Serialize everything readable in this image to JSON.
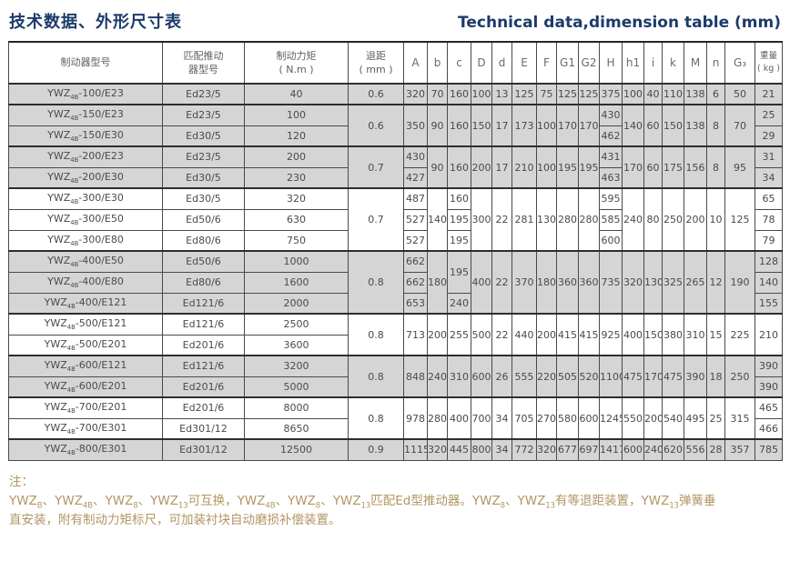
{
  "title": {
    "zh": "技术数据、外形尺寸表",
    "en": "Technical data,dimension table (mm)"
  },
  "table": {
    "headers": {
      "model": "制动器型号",
      "thruster": "匹配推动\n器型号",
      "torque": "制动力矩\n( N.m )",
      "gap": "退距\n( mm )",
      "dims": [
        "A",
        "b",
        "c",
        "D",
        "d",
        "E",
        "F",
        "G1",
        "G2",
        "H",
        "h1",
        "i",
        "k",
        "M",
        "n",
        "G₃"
      ],
      "weight": "重量\n( kg )"
    },
    "groups": [
      {
        "shade": true,
        "gap": "0.6",
        "rows": [
          {
            "model": "YWZ{4B}-100/E23",
            "thruster": "Ed23/5",
            "torque": "40"
          }
        ],
        "cells": {
          "A": [
            [
              "320",
              1
            ]
          ],
          "b": [
            [
              "70",
              1
            ]
          ],
          "c": [
            [
              "160",
              1
            ]
          ],
          "D": [
            [
              "100",
              1
            ]
          ],
          "d": [
            [
              "13",
              1
            ]
          ],
          "E": [
            [
              "125",
              1
            ]
          ],
          "F": [
            [
              "75",
              1
            ]
          ],
          "G1": [
            [
              "125",
              1
            ]
          ],
          "G2": [
            [
              "125",
              1
            ]
          ],
          "H": [
            [
              "375",
              1
            ]
          ],
          "h1": [
            [
              "100",
              1
            ]
          ],
          "i": [
            [
              "40",
              1
            ]
          ],
          "k": [
            [
              "110",
              1
            ]
          ],
          "M": [
            [
              "138",
              1
            ]
          ],
          "n": [
            [
              "6",
              1
            ]
          ],
          "G3": [
            [
              "50",
              1
            ]
          ],
          "wt": [
            [
              "21",
              1
            ]
          ]
        }
      },
      {
        "shade": true,
        "gap": "0.6",
        "rows": [
          {
            "model": "YWZ{4B}-150/E23",
            "thruster": "Ed23/5",
            "torque": "100"
          },
          {
            "model": "YWZ{4B}-150/E30",
            "thruster": "Ed30/5",
            "torque": "120"
          }
        ],
        "cells": {
          "A": [
            [
              "350",
              2
            ]
          ],
          "b": [
            [
              "90",
              2
            ]
          ],
          "c": [
            [
              "160",
              2
            ]
          ],
          "D": [
            [
              "150",
              2
            ]
          ],
          "d": [
            [
              "17",
              2
            ]
          ],
          "E": [
            [
              "173",
              2
            ]
          ],
          "F": [
            [
              "100",
              2
            ]
          ],
          "G1": [
            [
              "170",
              2
            ]
          ],
          "G2": [
            [
              "170",
              2
            ]
          ],
          "H": [
            [
              "430",
              1
            ],
            [
              "462",
              1
            ]
          ],
          "h1": [
            [
              "140",
              2
            ]
          ],
          "i": [
            [
              "60",
              2
            ]
          ],
          "k": [
            [
              "150",
              2
            ]
          ],
          "M": [
            [
              "138",
              2
            ]
          ],
          "n": [
            [
              "8",
              2
            ]
          ],
          "G3": [
            [
              "70",
              2
            ]
          ],
          "wt": [
            [
              "25",
              1
            ],
            [
              "29",
              1
            ]
          ]
        }
      },
      {
        "shade": true,
        "gap": "0.7",
        "rows": [
          {
            "model": "YWZ{4B}-200/E23",
            "thruster": "Ed23/5",
            "torque": "200"
          },
          {
            "model": "YWZ{4B}-200/E30",
            "thruster": "Ed30/5",
            "torque": "230"
          }
        ],
        "cells": {
          "A": [
            [
              "430",
              1
            ],
            [
              "427",
              1
            ]
          ],
          "b": [
            [
              "90",
              2
            ]
          ],
          "c": [
            [
              "160",
              2
            ]
          ],
          "D": [
            [
              "200",
              2
            ]
          ],
          "d": [
            [
              "17",
              2
            ]
          ],
          "E": [
            [
              "210",
              2
            ]
          ],
          "F": [
            [
              "100",
              2
            ]
          ],
          "G1": [
            [
              "195",
              2
            ]
          ],
          "G2": [
            [
              "195",
              2
            ]
          ],
          "H": [
            [
              "431",
              1
            ],
            [
              "463",
              1
            ]
          ],
          "h1": [
            [
              "170",
              2
            ]
          ],
          "i": [
            [
              "60",
              2
            ]
          ],
          "k": [
            [
              "175",
              2
            ]
          ],
          "M": [
            [
              "156",
              2
            ]
          ],
          "n": [
            [
              "8",
              2
            ]
          ],
          "G3": [
            [
              "95",
              2
            ]
          ],
          "wt": [
            [
              "31",
              1
            ],
            [
              "34",
              1
            ]
          ]
        }
      },
      {
        "shade": false,
        "gap": "0.7",
        "rows": [
          {
            "model": "YWZ{4B}-300/E30",
            "thruster": "Ed30/5",
            "torque": "320"
          },
          {
            "model": "YWZ{4B}-300/E50",
            "thruster": "Ed50/6",
            "torque": "630"
          },
          {
            "model": "YWZ{4B}-300/E80",
            "thruster": "Ed80/6",
            "torque": "750"
          }
        ],
        "cells": {
          "A": [
            [
              "487",
              1
            ],
            [
              "527",
              1
            ],
            [
              "527",
              1
            ]
          ],
          "b": [
            [
              "140",
              3
            ]
          ],
          "c": [
            [
              "160",
              1
            ],
            [
              "195",
              1
            ],
            [
              "195",
              1
            ]
          ],
          "D": [
            [
              "300",
              3
            ]
          ],
          "d": [
            [
              "22",
              3
            ]
          ],
          "E": [
            [
              "281",
              3
            ]
          ],
          "F": [
            [
              "130",
              3
            ]
          ],
          "G1": [
            [
              "280",
              3
            ]
          ],
          "G2": [
            [
              "280",
              3
            ]
          ],
          "H": [
            [
              "595",
              1
            ],
            [
              "585",
              1
            ],
            [
              "600",
              1
            ]
          ],
          "h1": [
            [
              "240",
              3
            ]
          ],
          "i": [
            [
              "80",
              3
            ]
          ],
          "k": [
            [
              "250",
              3
            ]
          ],
          "M": [
            [
              "200",
              3
            ]
          ],
          "n": [
            [
              "10",
              3
            ]
          ],
          "G3": [
            [
              "125",
              3
            ]
          ],
          "wt": [
            [
              "65",
              1
            ],
            [
              "78",
              1
            ],
            [
              "79",
              1
            ]
          ]
        }
      },
      {
        "shade": true,
        "gap": "0.8",
        "rows": [
          {
            "model": "YWZ{4B}-400/E50",
            "thruster": "Ed50/6",
            "torque": "1000"
          },
          {
            "model": "YWZ{4B}-400/E80",
            "thruster": "Ed80/6",
            "torque": "1600"
          },
          {
            "model": "YWZ{4B}-400/E121",
            "thruster": "Ed121/6",
            "torque": "2000"
          }
        ],
        "cells": {
          "A": [
            [
              "662",
              1
            ],
            [
              "662",
              1
            ],
            [
              "653",
              1
            ]
          ],
          "b": [
            [
              "180",
              3
            ]
          ],
          "c": [
            [
              "195",
              2
            ],
            [
              "240",
              1
            ]
          ],
          "D": [
            [
              "400",
              3
            ]
          ],
          "d": [
            [
              "22",
              3
            ]
          ],
          "E": [
            [
              "370",
              3
            ]
          ],
          "F": [
            [
              "180",
              3
            ]
          ],
          "G1": [
            [
              "360",
              3
            ]
          ],
          "G2": [
            [
              "360",
              3
            ]
          ],
          "H": [
            [
              "735",
              3
            ]
          ],
          "h1": [
            [
              "320",
              3
            ]
          ],
          "i": [
            [
              "130",
              3
            ]
          ],
          "k": [
            [
              "325",
              3
            ]
          ],
          "M": [
            [
              "265",
              3
            ]
          ],
          "n": [
            [
              "12",
              3
            ]
          ],
          "G3": [
            [
              "190",
              3
            ]
          ],
          "wt": [
            [
              "128",
              1
            ],
            [
              "140",
              1
            ],
            [
              "155",
              1
            ]
          ]
        }
      },
      {
        "shade": false,
        "gap": "0.8",
        "rows": [
          {
            "model": "YWZ{4B}-500/E121",
            "thruster": "Ed121/6",
            "torque": "2500"
          },
          {
            "model": "YWZ{4B}-500/E201",
            "thruster": "Ed201/6",
            "torque": "3600"
          }
        ],
        "cells": {
          "A": [
            [
              "713",
              2
            ]
          ],
          "b": [
            [
              "200",
              2
            ]
          ],
          "c": [
            [
              "255",
              2
            ]
          ],
          "D": [
            [
              "500",
              2
            ]
          ],
          "d": [
            [
              "22",
              2
            ]
          ],
          "E": [
            [
              "440",
              2
            ]
          ],
          "F": [
            [
              "200",
              2
            ]
          ],
          "G1": [
            [
              "415",
              2
            ]
          ],
          "G2": [
            [
              "415",
              2
            ]
          ],
          "H": [
            [
              "925",
              2
            ]
          ],
          "h1": [
            [
              "400",
              2
            ]
          ],
          "i": [
            [
              "150",
              2
            ]
          ],
          "k": [
            [
              "380",
              2
            ]
          ],
          "M": [
            [
              "310",
              2
            ]
          ],
          "n": [
            [
              "15",
              2
            ]
          ],
          "G3": [
            [
              "225",
              2
            ]
          ],
          "wt": [
            [
              "210",
              2
            ]
          ]
        }
      },
      {
        "shade": true,
        "gap": "0.8",
        "rows": [
          {
            "model": "YWZ{4B}-600/E121",
            "thruster": "Ed121/6",
            "torque": "3200"
          },
          {
            "model": "YWZ{4B}-600/E201",
            "thruster": "Ed201/6",
            "torque": "5000"
          }
        ],
        "cells": {
          "A": [
            [
              "848",
              2
            ]
          ],
          "b": [
            [
              "240",
              2
            ]
          ],
          "c": [
            [
              "310",
              2
            ]
          ],
          "D": [
            [
              "600",
              2
            ]
          ],
          "d": [
            [
              "26",
              2
            ]
          ],
          "E": [
            [
              "555",
              2
            ]
          ],
          "F": [
            [
              "220",
              2
            ]
          ],
          "G1": [
            [
              "505",
              2
            ]
          ],
          "G2": [
            [
              "520",
              2
            ]
          ],
          "H": [
            [
              "1100",
              2
            ]
          ],
          "h1": [
            [
              "475",
              2
            ]
          ],
          "i": [
            [
              "170",
              2
            ]
          ],
          "k": [
            [
              "475",
              2
            ]
          ],
          "M": [
            [
              "390",
              2
            ]
          ],
          "n": [
            [
              "18",
              2
            ]
          ],
          "G3": [
            [
              "250",
              2
            ]
          ],
          "wt": [
            [
              "390",
              1
            ],
            [
              "390",
              1
            ]
          ]
        }
      },
      {
        "shade": false,
        "gap": "0.8",
        "rows": [
          {
            "model": "YWZ{4B}-700/E201",
            "thruster": "Ed201/6",
            "torque": "8000"
          },
          {
            "model": "YWZ{4B}-700/E301",
            "thruster": "Ed301/12",
            "torque": "8650"
          }
        ],
        "cells": {
          "A": [
            [
              "978",
              2
            ]
          ],
          "b": [
            [
              "280",
              2
            ]
          ],
          "c": [
            [
              "400",
              2
            ]
          ],
          "D": [
            [
              "700",
              2
            ]
          ],
          "d": [
            [
              "34",
              2
            ]
          ],
          "E": [
            [
              "705",
              2
            ]
          ],
          "F": [
            [
              "270",
              2
            ]
          ],
          "G1": [
            [
              "580",
              2
            ]
          ],
          "G2": [
            [
              "600",
              2
            ]
          ],
          "H": [
            [
              "1245",
              2
            ]
          ],
          "h1": [
            [
              "550",
              2
            ]
          ],
          "i": [
            [
              "200",
              2
            ]
          ],
          "k": [
            [
              "540",
              2
            ]
          ],
          "M": [
            [
              "495",
              2
            ]
          ],
          "n": [
            [
              "25",
              2
            ]
          ],
          "G3": [
            [
              "315",
              2
            ]
          ],
          "wt": [
            [
              "465",
              1
            ],
            [
              "466",
              1
            ]
          ]
        }
      },
      {
        "shade": true,
        "gap": "0.9",
        "rows": [
          {
            "model": "YWZ{4B}-800/E301",
            "thruster": "Ed301/12",
            "torque": "12500"
          }
        ],
        "cells": {
          "A": [
            [
              "1115",
              1
            ]
          ],
          "b": [
            [
              "320",
              1
            ]
          ],
          "c": [
            [
              "445",
              1
            ]
          ],
          "D": [
            [
              "800",
              1
            ]
          ],
          "d": [
            [
              "34",
              1
            ]
          ],
          "E": [
            [
              "772",
              1
            ]
          ],
          "F": [
            [
              "320",
              1
            ]
          ],
          "G1": [
            [
              "677",
              1
            ]
          ],
          "G2": [
            [
              "697",
              1
            ]
          ],
          "H": [
            [
              "1417",
              1
            ]
          ],
          "h1": [
            [
              "600",
              1
            ]
          ],
          "i": [
            [
              "240",
              1
            ]
          ],
          "k": [
            [
              "620",
              1
            ]
          ],
          "M": [
            [
              "556",
              1
            ]
          ],
          "n": [
            [
              "28",
              1
            ]
          ],
          "G3": [
            [
              "357",
              1
            ]
          ],
          "wt": [
            [
              "785",
              1
            ]
          ]
        }
      }
    ]
  },
  "notes": {
    "label": "注：",
    "line1": "YWZ{B}、YWZ{4B}、YWZ{8}、YWZ{13}可互换，YWZ{4B}、YWZ{8}、YWZ{13}匹配Ed型推动器。YWZ{8}、YWZ{13}有等退距装置，YWZ{13}弹簧垂",
    "line2": "直安装，附有制动力矩标尺，可加装衬块自动磨损补偿装置。"
  }
}
